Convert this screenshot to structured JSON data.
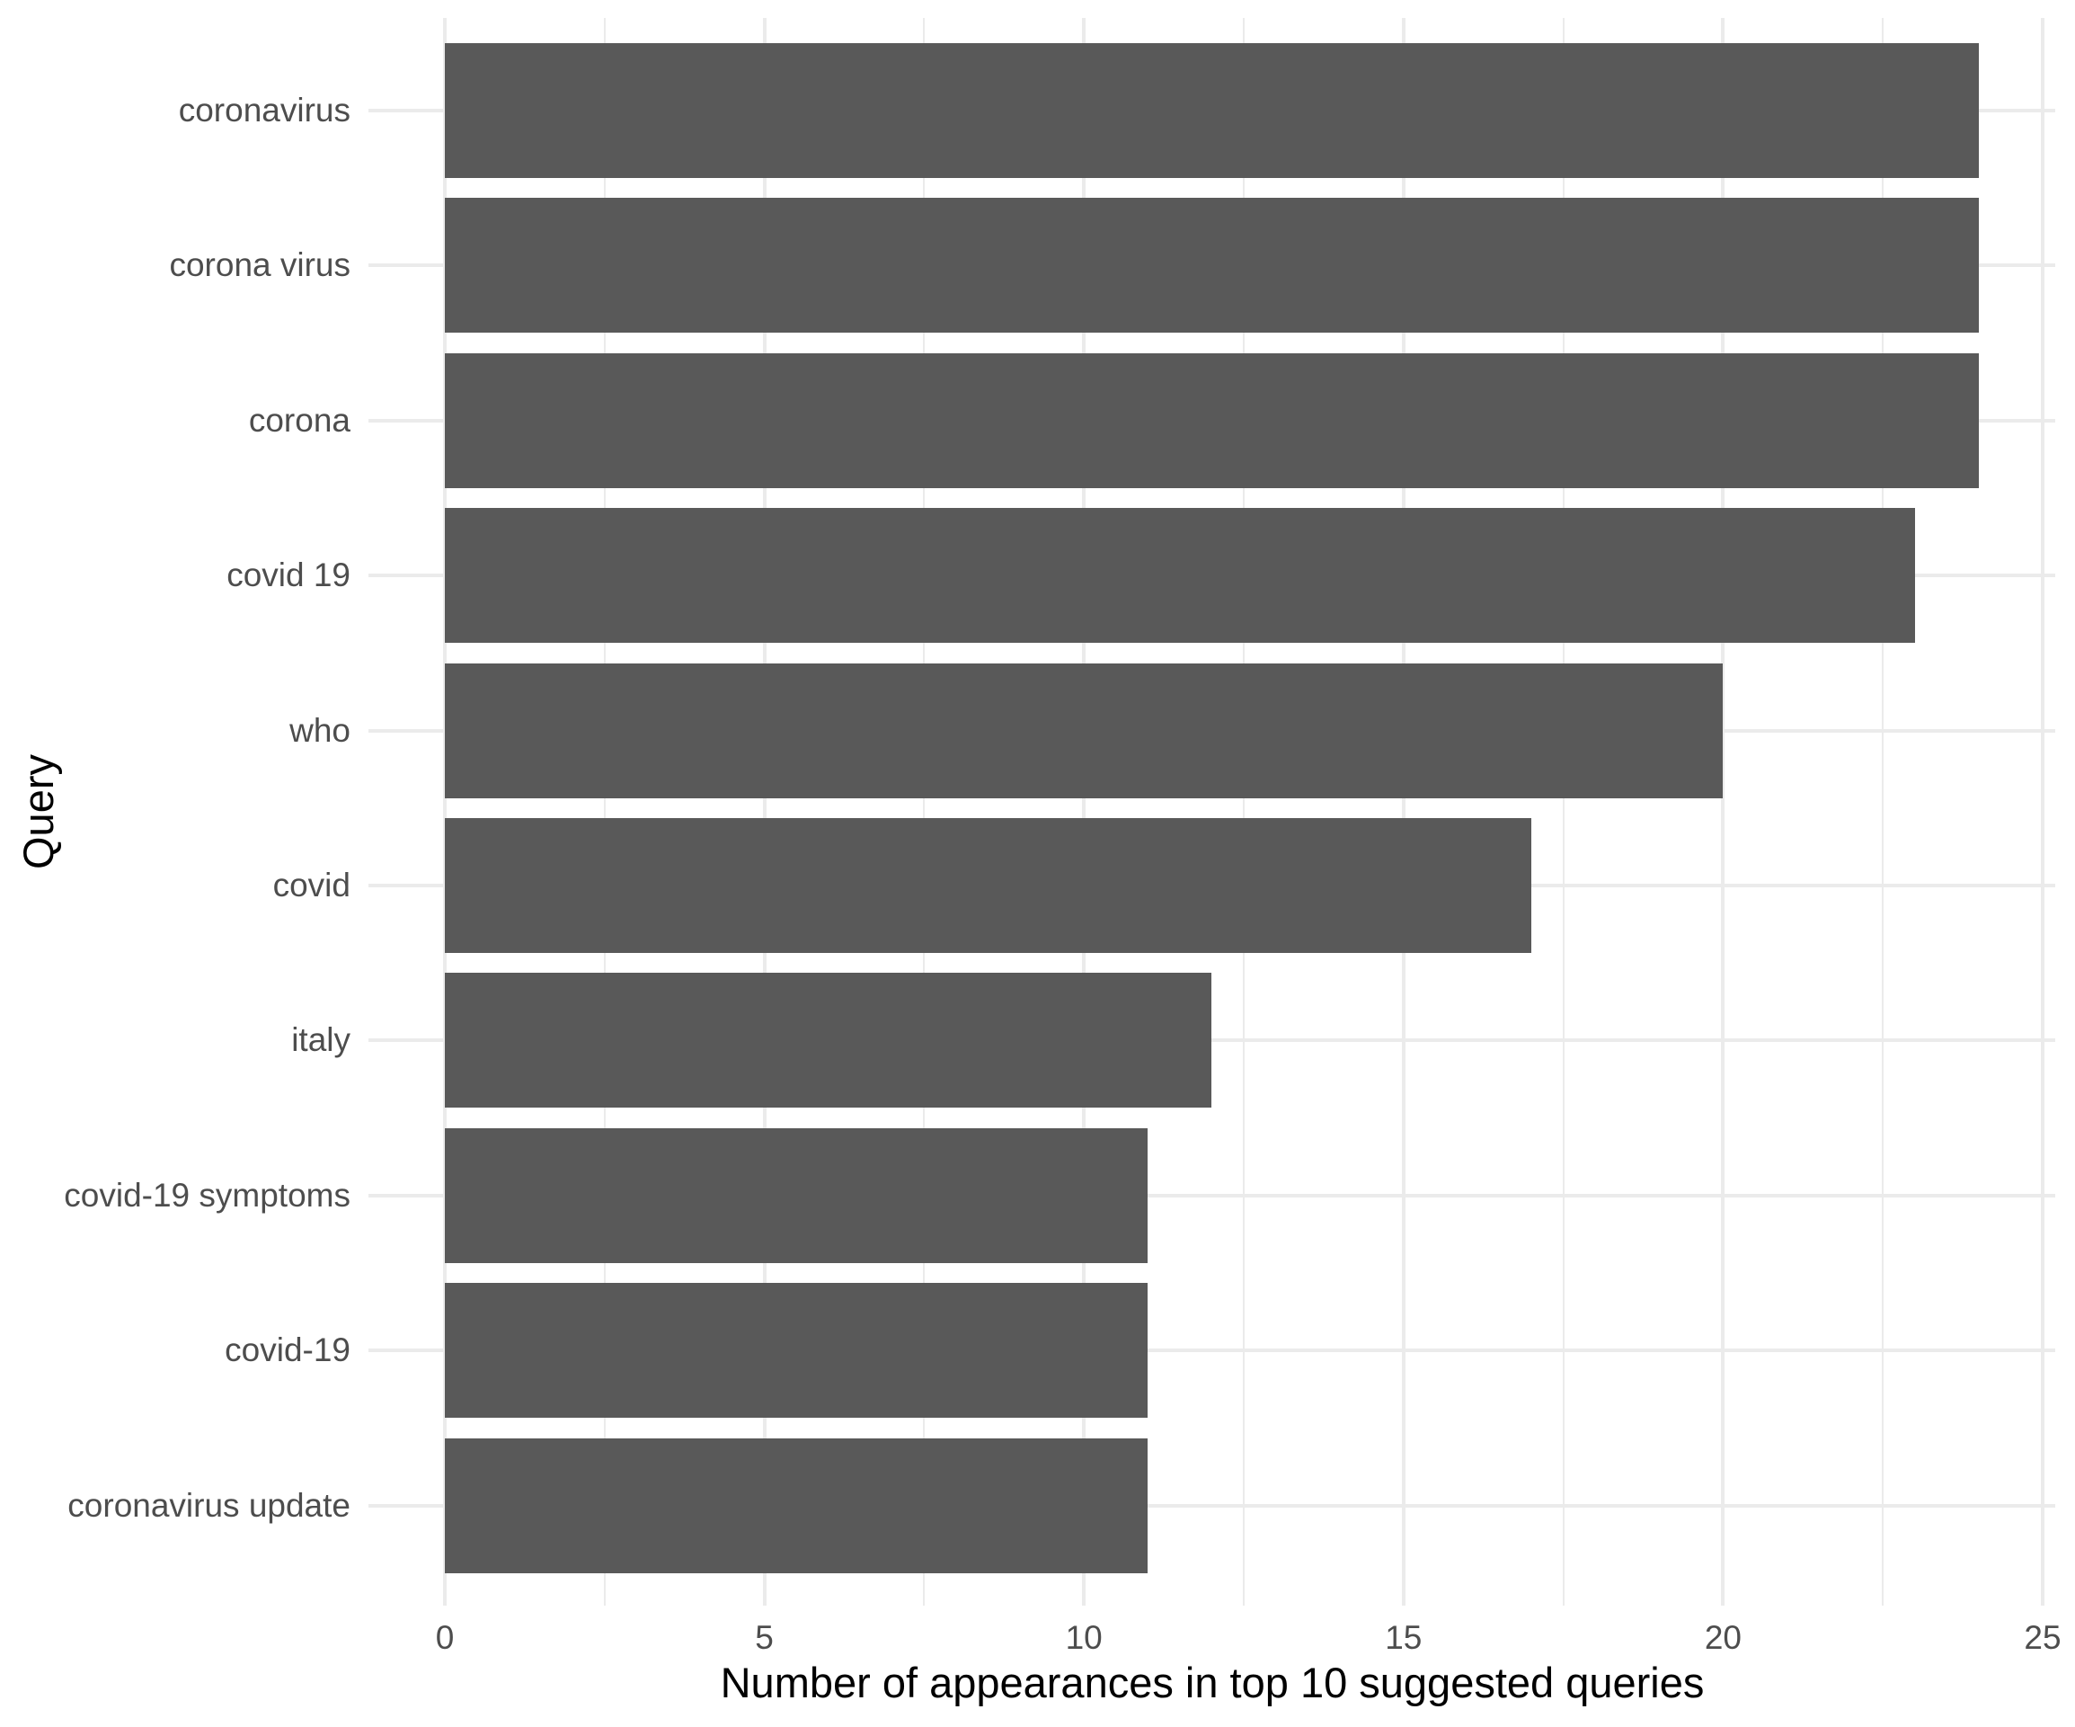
{
  "chart_data": {
    "type": "bar",
    "orientation": "horizontal",
    "title": "",
    "xlabel": "Number of appearances in top 10 suggested queries",
    "ylabel": "Query",
    "categories": [
      "coronavirus",
      "corona virus",
      "corona",
      "covid 19",
      "who",
      "covid",
      "italy",
      "covid-19 symptoms",
      "covid-19",
      "coronavirus update"
    ],
    "values": [
      24,
      24,
      24,
      23,
      20,
      17,
      12,
      11,
      11,
      11
    ],
    "x_ticks": [
      0,
      5,
      10,
      15,
      20,
      25
    ],
    "x_minor_ticks": [
      2.5,
      7.5,
      12.5,
      17.5,
      22.5
    ],
    "xlim": [
      0,
      25
    ],
    "grid": "major-and-minor-vertical, major-horizontal",
    "legend_position": "none",
    "colors": {
      "bar_fill": "#595959",
      "gridline": "#ebebeb",
      "axis_text": "#4d4d4d",
      "axis_title": "#000000",
      "background": "#ffffff"
    }
  }
}
